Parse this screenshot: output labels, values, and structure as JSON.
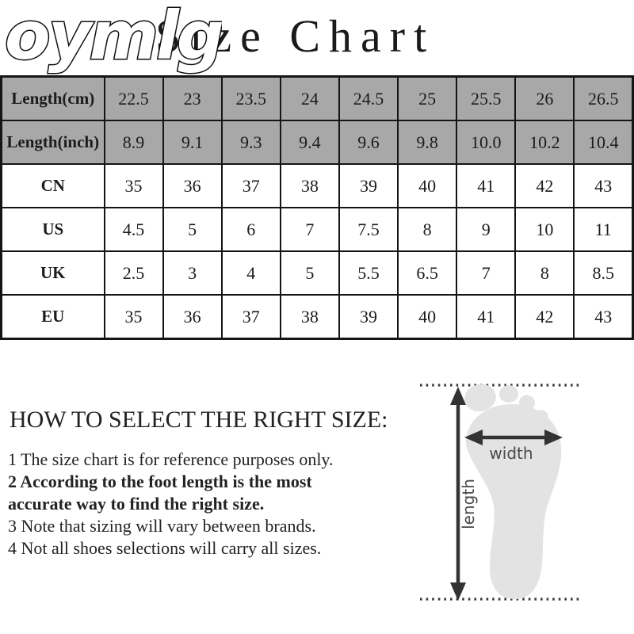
{
  "header": {
    "logo": "oymlg",
    "title": "Size Chart"
  },
  "chart_data": {
    "type": "table",
    "title": "Size Chart",
    "columns_note": "each row maps one measurement system across 9 sizes",
    "rows": [
      {
        "label": "Length(cm)",
        "header": true,
        "values": [
          "22.5",
          "23",
          "23.5",
          "24",
          "24.5",
          "25",
          "25.5",
          "26",
          "26.5"
        ]
      },
      {
        "label": "Length(inch)",
        "header": true,
        "values": [
          "8.9",
          "9.1",
          "9.3",
          "9.4",
          "9.6",
          "9.8",
          "10.0",
          "10.2",
          "10.4"
        ]
      },
      {
        "label": "CN",
        "header": false,
        "values": [
          "35",
          "36",
          "37",
          "38",
          "39",
          "40",
          "41",
          "42",
          "43"
        ]
      },
      {
        "label": "US",
        "header": false,
        "values": [
          "4.5",
          "5",
          "6",
          "7",
          "7.5",
          "8",
          "9",
          "10",
          "11"
        ]
      },
      {
        "label": "UK",
        "header": false,
        "values": [
          "2.5",
          "3",
          "4",
          "5",
          "5.5",
          "6.5",
          "7",
          "8",
          "8.5"
        ]
      },
      {
        "label": "EU",
        "header": false,
        "values": [
          "35",
          "36",
          "37",
          "38",
          "39",
          "40",
          "41",
          "42",
          "43"
        ]
      }
    ],
    "header_bg": "#a8a8a8",
    "border_color": "#151515"
  },
  "howto": {
    "heading": "HOW TO SELECT THE RIGHT SIZE:",
    "notes": [
      {
        "text": "1 The size chart is for reference purposes only.",
        "bold": false
      },
      {
        "text": "2 According to the foot length is the most accurate way to find the right size.",
        "bold": true
      },
      {
        "text": "3 Note that sizing will vary between brands.",
        "bold": false
      },
      {
        "text": "4 Not all shoes selections will carry all sizes.",
        "bold": false
      }
    ]
  },
  "diagram": {
    "length_label": "length",
    "width_label": "width",
    "foot_color": "#e3e3e3",
    "arrow_color": "#333333",
    "label_color": "#4a4a4a"
  }
}
